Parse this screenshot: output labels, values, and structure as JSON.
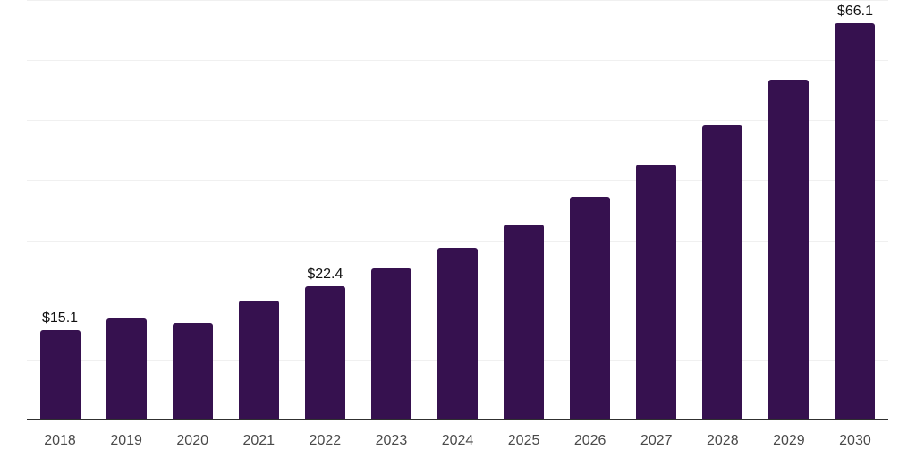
{
  "chart_data": {
    "type": "bar",
    "categories": [
      "2018",
      "2019",
      "2020",
      "2021",
      "2022",
      "2023",
      "2024",
      "2025",
      "2026",
      "2027",
      "2028",
      "2029",
      "2030"
    ],
    "values": [
      15.1,
      17.0,
      16.2,
      19.9,
      22.4,
      25.3,
      28.7,
      32.6,
      37.2,
      42.6,
      49.1,
      56.8,
      66.1
    ],
    "data_labels": [
      "$15.1",
      "",
      "",
      "",
      "$22.4",
      "",
      "",
      "",
      "",
      "",
      "",
      "",
      "$66.1"
    ],
    "title": "",
    "xlabel": "",
    "ylabel": "",
    "ylim": [
      0,
      70
    ],
    "gridline_step": 10,
    "grid": true,
    "legend": false,
    "y_tick_labels_shown": false,
    "colors": {
      "bar": "#36114F",
      "gridline": "#f0f0f0",
      "axis_line": "#303030",
      "x_tick_label": "#4a4a4a",
      "data_label": "#111111",
      "background": "#ffffff"
    }
  }
}
